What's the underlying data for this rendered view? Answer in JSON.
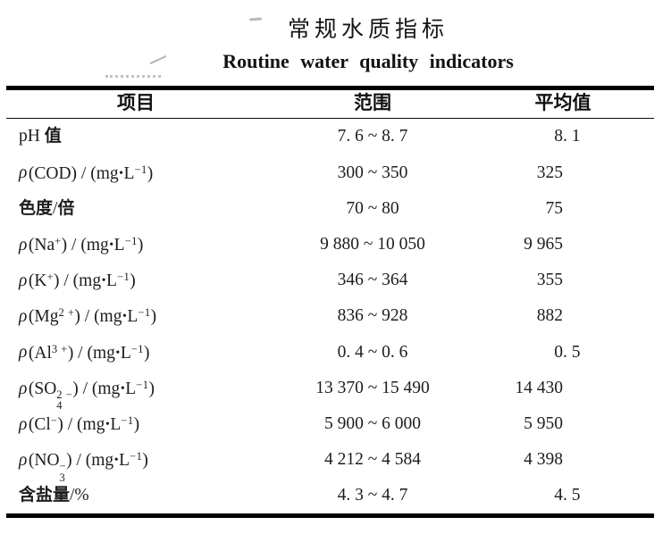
{
  "page": {
    "background": "#ffffff",
    "text_color": "#1d1d1d",
    "rule_color": "#000000"
  },
  "title_zh": "常规水质指标",
  "title_en": "Routine water quality indicators",
  "table": {
    "columns": [
      "项目",
      "范围",
      "平均值"
    ],
    "rows": [
      {
        "item": "pH 值",
        "range": "7. 6 ~ 8. 7",
        "average": "8. 1"
      },
      {
        "item": "ρ(COD) / (mg•L^{−1})",
        "range": "300 ~ 350",
        "average": "325"
      },
      {
        "item": "色度/倍",
        "range": "70 ~ 80",
        "average": "75"
      },
      {
        "item": "ρ(Na^{+}) / (mg•L^{−1})",
        "range": "9 880 ~ 10 050",
        "average": "9 965"
      },
      {
        "item": "ρ(K^{+}) / (mg•L^{−1})",
        "range": "346 ~ 364",
        "average": "355"
      },
      {
        "item": "ρ(Mg^{2 +}) / (mg•L^{−1})",
        "range": "836 ~ 928",
        "average": "882"
      },
      {
        "item": "ρ(Al^{3 +}) / (mg•L^{−1})",
        "range": "0. 4 ~ 0. 6",
        "average": "0. 5"
      },
      {
        "item": "ρ(SO_{4}^{2 −}) / (mg•L^{−1})",
        "range": "13 370 ~ 15 490",
        "average": "14 430"
      },
      {
        "item": "ρ(Cl^{−}) / (mg•L^{−1})",
        "range": "5 900 ~ 6 000",
        "average": "5 950"
      },
      {
        "item": "ρ(NO_{3}^{−}) / (mg•L^{−1})",
        "range": "4 212 ~ 4 584",
        "average": "4 398"
      },
      {
        "item": "含盐量/%",
        "range": "4. 3 ~ 4. 7",
        "average": "4. 5"
      }
    ]
  },
  "chart_data": {
    "type": "table",
    "title": "常规水质指标 (Routine water quality indicators)",
    "columns": [
      "项目",
      "范围",
      "平均值"
    ],
    "rows": [
      [
        "pH 值",
        "7.6~8.7",
        "8.1"
      ],
      [
        "ρ(COD)/(mg·L−1)",
        "300~350",
        "325"
      ],
      [
        "色度/倍",
        "70~80",
        "75"
      ],
      [
        "ρ(Na+)/(mg·L−1)",
        "9 880~10 050",
        "9 965"
      ],
      [
        "ρ(K+)/(mg·L−1)",
        "346~364",
        "355"
      ],
      [
        "ρ(Mg2+)/(mg·L−1)",
        "836~928",
        "882"
      ],
      [
        "ρ(Al3+)/(mg·L−1)",
        "0.4~0.6",
        "0.5"
      ],
      [
        "ρ(SO42−)/(mg·L−1)",
        "13 370~15 490",
        "14 430"
      ],
      [
        "ρ(Cl−)/(mg·L−1)",
        "5 900~6 000",
        "5 950"
      ],
      [
        "ρ(NO3−)/(mg·L−1)",
        "4 212~4 584",
        "4 398"
      ],
      [
        "含盐量/%",
        "4.3~4.7",
        "4.5"
      ]
    ]
  }
}
